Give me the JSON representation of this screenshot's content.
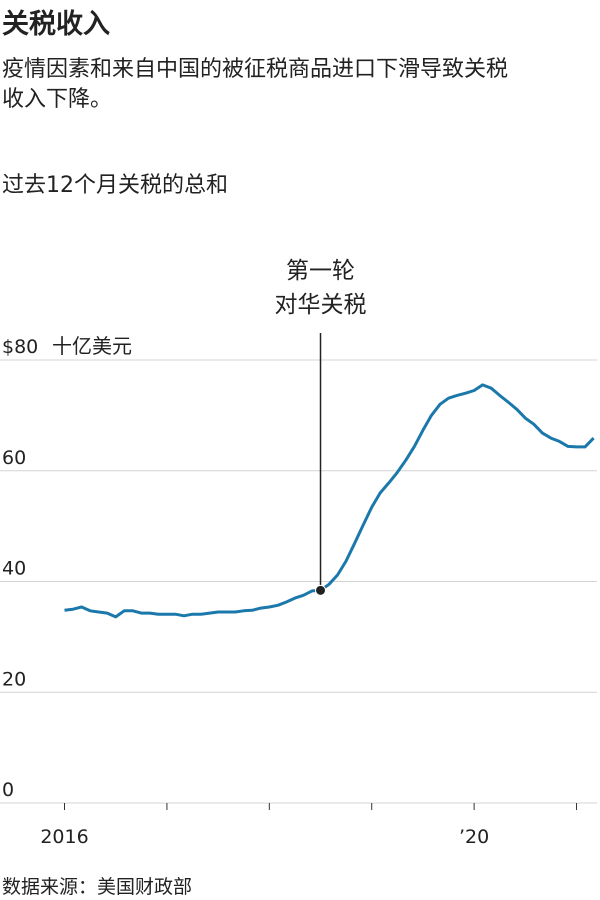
{
  "chart_data": {
    "type": "line",
    "title": "关税收入",
    "subtitle": "疫情因素和来自中国的被征税商品进口下滑导致关税收入下降。",
    "chart_label": "过去12个月关税的总和",
    "y_unit": "十亿美元",
    "source": "数据来源：美国财政部",
    "annotation": {
      "lines": [
        "第一轮",
        "对华关税"
      ],
      "x": 2018.5,
      "value": 38.4
    },
    "x": [
      2016,
      2016.083,
      2016.167,
      2016.25,
      2016.333,
      2016.417,
      2016.5,
      2016.583,
      2016.667,
      2016.75,
      2016.833,
      2016.917,
      2017,
      2017.083,
      2017.167,
      2017.25,
      2017.333,
      2017.417,
      2017.5,
      2017.583,
      2017.667,
      2017.75,
      2017.833,
      2017.917,
      2018,
      2018.083,
      2018.167,
      2018.25,
      2018.333,
      2018.417,
      2018.5,
      2018.583,
      2018.667,
      2018.75,
      2018.833,
      2018.917,
      2019,
      2019.083,
      2019.167,
      2019.25,
      2019.333,
      2019.417,
      2019.5,
      2019.583,
      2019.667,
      2019.75,
      2019.833,
      2019.917,
      2020,
      2020.083,
      2020.167,
      2020.25,
      2020.333,
      2020.417,
      2020.5,
      2020.583,
      2020.667,
      2020.75,
      2020.833,
      2020.917,
      2021,
      2021.083,
      2021.167
    ],
    "series": [
      {
        "name": "关税",
        "color": "#1b78ab",
        "values": [
          34.8,
          35.0,
          35.4,
          34.7,
          34.5,
          34.3,
          33.6,
          34.7,
          34.7,
          34.3,
          34.3,
          34.1,
          34.1,
          34.1,
          33.8,
          34.1,
          34.1,
          34.3,
          34.5,
          34.5,
          34.5,
          34.7,
          34.8,
          35.2,
          35.4,
          35.7,
          36.3,
          37.0,
          37.5,
          38.3,
          38.4,
          39.5,
          41.2,
          43.7,
          46.9,
          50.2,
          53.4,
          56.0,
          57.8,
          59.7,
          61.9,
          64.4,
          67.3,
          70.0,
          72.0,
          73.1,
          73.6,
          74.0,
          74.5,
          75.5,
          74.9,
          73.6,
          72.4,
          71.1,
          69.5,
          68.4,
          66.8,
          65.9,
          65.3,
          64.4,
          64.3,
          64.3,
          65.9
        ]
      }
    ],
    "xlim": [
      2015.37,
      2021.2
    ],
    "xticks": [
      {
        "value": 2016,
        "label": "2016"
      },
      2017,
      2018,
      2019,
      {
        "value": 2020,
        "label": "’20"
      },
      2021
    ],
    "ylim": [
      0,
      80
    ],
    "yticks": [
      0,
      20,
      40,
      {
        "value": 80,
        "label": "$80"
      },
      60
    ],
    "grid": true
  }
}
